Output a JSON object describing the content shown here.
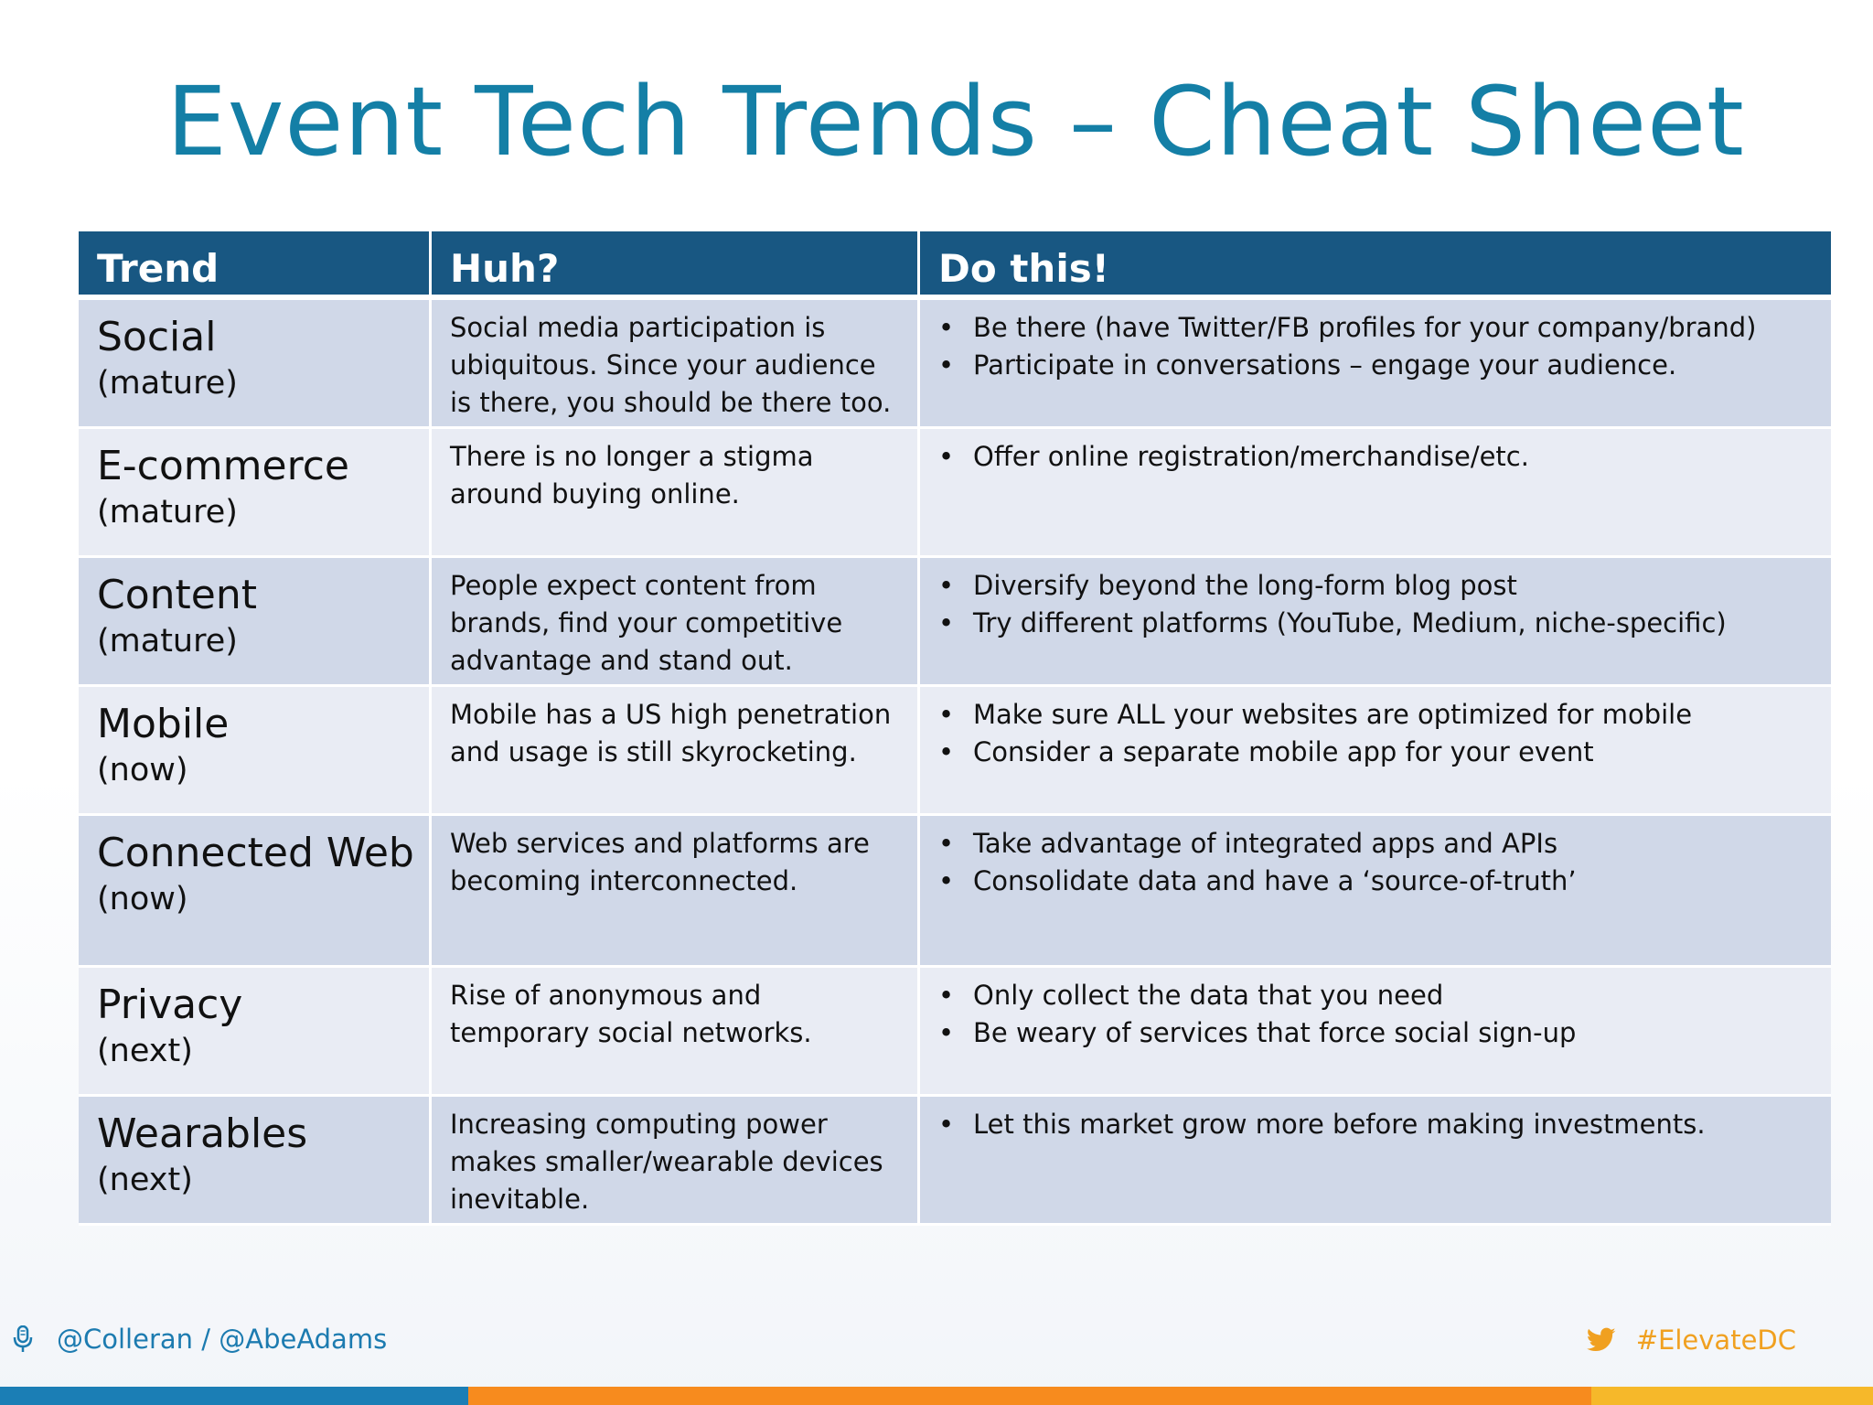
{
  "title": "Event Tech Trends – Cheat Sheet",
  "table": {
    "headers": [
      "Trend",
      "Huh?",
      "Do this!"
    ],
    "rows": [
      {
        "trend": "Social",
        "stage": "(mature)",
        "huh": "Social media participation is ubiquitous. Since your audience is there, you should be there too.",
        "do": [
          "Be there (have Twitter/FB profiles for your company/brand)",
          "Participate in conversations – engage your audience."
        ]
      },
      {
        "trend": "E-commerce",
        "stage": "(mature)",
        "huh": "There is no longer a stigma around buying online.",
        "do": [
          "Offer online registration/merchandise/etc."
        ]
      },
      {
        "trend": "Content",
        "stage": "(mature)",
        "huh": "People expect content from brands, find your competitive advantage and stand out.",
        "do": [
          "Diversify beyond the long-form blog post",
          "Try different platforms (YouTube, Medium, niche-specific)"
        ]
      },
      {
        "trend": "Mobile",
        "stage": "(now)",
        "huh": "Mobile has a US high penetration and usage is still skyrocketing.",
        "do": [
          "Make sure ALL your websites are optimized for mobile",
          "Consider a separate mobile app for your event"
        ]
      },
      {
        "trend": "Connected Web",
        "stage": "(now)",
        "huh": "Web services and platforms are becoming interconnected.",
        "do": [
          "Take advantage of integrated apps and APIs",
          "Consolidate data and have a ‘source-of-truth’"
        ]
      },
      {
        "trend": "Privacy",
        "stage": "(next)",
        "huh": "Rise of anonymous and temporary social networks.",
        "do": [
          "Only collect the data that you need",
          "Be weary of services that force social sign-up"
        ]
      },
      {
        "trend": "Wearables",
        "stage": "(next)",
        "huh": "Increasing computing power makes smaller/wearable devices inevitable.",
        "do": [
          "Let this market grow more before making investments."
        ]
      }
    ]
  },
  "footer": {
    "left_icon": "microphone-icon",
    "left_text": "@Colleran / @AbeAdams",
    "right_icon": "twitter-bird-icon",
    "right_text": "#ElevateDC"
  },
  "colors": {
    "title": "#147fa6",
    "header_bg": "#185782",
    "row_odd": "#d0d8e8",
    "row_even": "#e9ecf4",
    "footer_left": "#1c7bb0",
    "footer_right": "#f0a020",
    "bar_blue": "#1b7eb5",
    "bar_orange": "#f78b1e",
    "bar_yellow": "#f6b82a"
  }
}
